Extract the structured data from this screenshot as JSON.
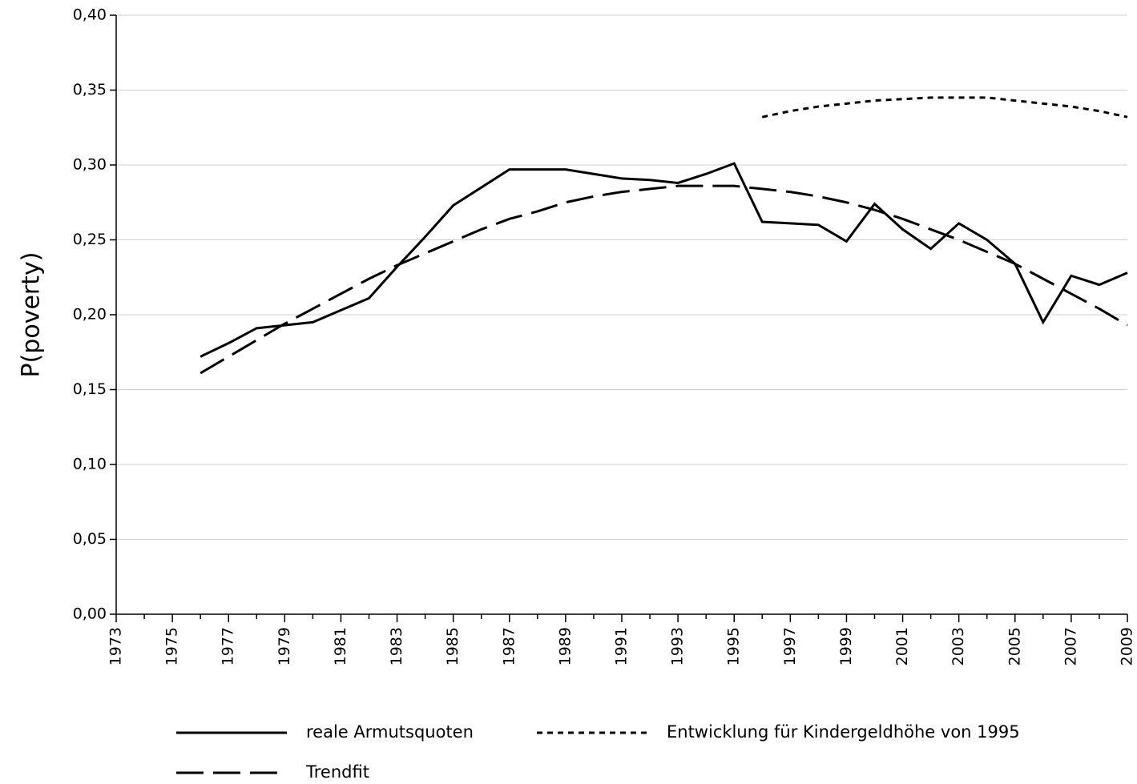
{
  "chart_data": {
    "type": "line",
    "y_label": "P(poverty)",
    "xlim": [
      1973,
      2009
    ],
    "xticks": [
      1973,
      1975,
      1977,
      1979,
      1981,
      1983,
      1985,
      1987,
      1989,
      1991,
      1993,
      1995,
      1997,
      1999,
      2001,
      2003,
      2005,
      2007,
      2009
    ],
    "ylim": [
      0,
      0.4
    ],
    "yticks": [
      {
        "value": 0,
        "label": "0,00"
      },
      {
        "value": 0.05,
        "label": "0,05"
      },
      {
        "value": 0.1,
        "label": "0,10"
      },
      {
        "value": 0.15,
        "label": "0,15"
      },
      {
        "value": 0.2,
        "label": "0,20"
      },
      {
        "value": 0.25,
        "label": "0,25"
      },
      {
        "value": 0.3,
        "label": "0,30"
      },
      {
        "value": 0.35,
        "label": "0,35"
      },
      {
        "value": 0.4,
        "label": "0,40"
      }
    ],
    "grid": true,
    "legend": "bottom",
    "series": [
      {
        "name": "reale Armutsquoten",
        "color": "#000000",
        "dash": "solid",
        "x": [
          1976,
          1977,
          1978,
          1979,
          1980,
          1981,
          1982,
          1983,
          1984,
          1985,
          1986,
          1987,
          1988,
          1989,
          1990,
          1991,
          1992,
          1993,
          1994,
          1995,
          1996,
          1997,
          1998,
          1999,
          2000,
          2001,
          2002,
          2003,
          2004,
          2005,
          2006,
          2007,
          2008,
          2009
        ],
        "values": [
          0.172,
          0.181,
          0.191,
          0.193,
          0.195,
          0.203,
          0.211,
          0.232,
          0.252,
          0.273,
          0.285,
          0.297,
          0.297,
          0.297,
          0.294,
          0.291,
          0.29,
          0.288,
          0.294,
          0.301,
          0.262,
          0.261,
          0.26,
          0.249,
          0.274,
          0.257,
          0.244,
          0.261,
          0.25,
          0.234,
          0.195,
          0.226,
          0.22,
          0.228
        ]
      },
      {
        "name": "Entwicklung für Kindergeldhöhe von 1995",
        "color": "#000000",
        "dash": "dotted",
        "x": [
          1996,
          1997,
          1998,
          1999,
          2000,
          2001,
          2002,
          2003,
          2004,
          2005,
          2006,
          2007,
          2008,
          2009
        ],
        "values": [
          0.332,
          0.336,
          0.339,
          0.341,
          0.343,
          0.344,
          0.345,
          0.345,
          0.345,
          0.343,
          0.341,
          0.339,
          0.336,
          0.332
        ]
      },
      {
        "name": "Trendfit",
        "color": "#000000",
        "dash": "dashed",
        "x": [
          1976,
          1977,
          1978,
          1979,
          1980,
          1981,
          1982,
          1983,
          1984,
          1985,
          1986,
          1987,
          1988,
          1989,
          1990,
          1991,
          1992,
          1993,
          1994,
          1995,
          1996,
          1997,
          1998,
          1999,
          2000,
          2001,
          2002,
          2003,
          2004,
          2005,
          2006,
          2007,
          2008,
          2009
        ],
        "values": [
          0.161,
          0.172,
          0.183,
          0.194,
          0.204,
          0.214,
          0.224,
          0.233,
          0.241,
          0.249,
          0.257,
          0.264,
          0.269,
          0.275,
          0.279,
          0.282,
          0.284,
          0.286,
          0.286,
          0.286,
          0.284,
          0.282,
          0.279,
          0.275,
          0.27,
          0.264,
          0.257,
          0.25,
          0.242,
          0.234,
          0.224,
          0.214,
          0.204,
          0.193
        ]
      }
    ]
  }
}
